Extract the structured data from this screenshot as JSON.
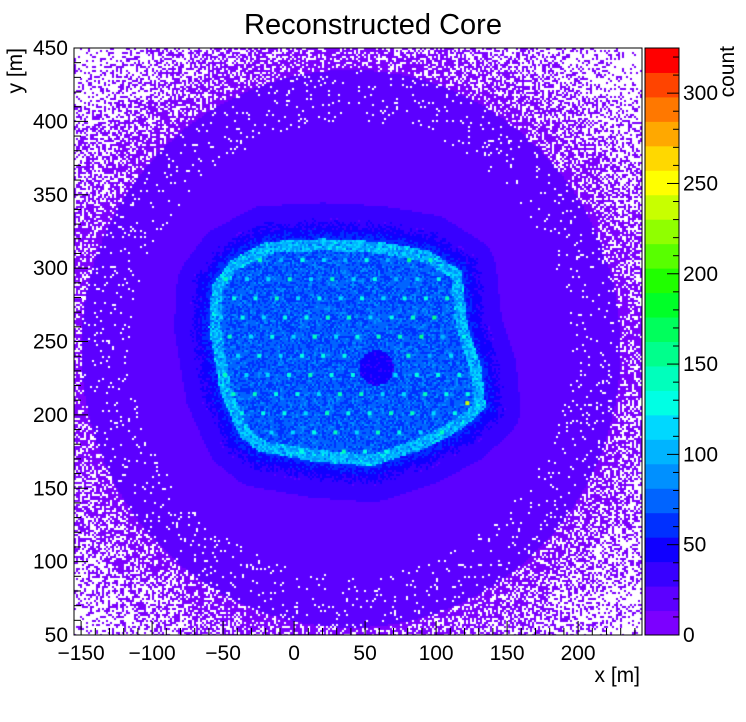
{
  "chart_data": {
    "type": "heatmap",
    "title": "Reconstructed Core",
    "xlabel": "x [m]",
    "ylabel": "y [m]",
    "zlabel": "count",
    "xlim": [
      -155,
      245
    ],
    "ylim": [
      50,
      450
    ],
    "zlim": [
      0,
      325
    ],
    "x_ticks": [
      -150,
      -100,
      -50,
      0,
      50,
      100,
      150,
      200
    ],
    "y_ticks": [
      50,
      100,
      150,
      200,
      250,
      300,
      350,
      400,
      450
    ],
    "z_ticks": [
      0,
      50,
      100,
      150,
      200,
      250,
      300
    ],
    "palette": [
      "#7c00ff",
      "#5c00ff",
      "#3800ff",
      "#1000ff",
      "#0030ff",
      "#0064ff",
      "#0090ff",
      "#00b4ff",
      "#00d8ff",
      "#00ffe4",
      "#00ffbc",
      "#00ff8c",
      "#00ff5c",
      "#00ff28",
      "#20ff00",
      "#58ff00",
      "#90ff00",
      "#c8ff00",
      "#ffff00",
      "#ffd800",
      "#ffa800",
      "#ff7800",
      "#ff4400",
      "#ff0000"
    ],
    "background_level": 0.1,
    "array": {
      "outline": [
        [
          -58,
          288
        ],
        [
          -45,
          305
        ],
        [
          -20,
          318
        ],
        [
          20,
          320
        ],
        [
          60,
          318
        ],
        [
          95,
          312
        ],
        [
          118,
          298
        ],
        [
          122,
          262
        ],
        [
          132,
          232
        ],
        [
          135,
          205
        ],
        [
          118,
          190
        ],
        [
          90,
          176
        ],
        [
          55,
          165
        ],
        [
          15,
          168
        ],
        [
          -25,
          175
        ],
        [
          -38,
          185
        ],
        [
          -52,
          215
        ],
        [
          -60,
          260
        ]
      ],
      "rows": 16,
      "spacing": 15,
      "level": 0.32,
      "peak": [
        122,
        208,
        240
      ]
    },
    "hole": [
      58,
      232,
      12
    ],
    "outer_sparse_radius": 190
  }
}
